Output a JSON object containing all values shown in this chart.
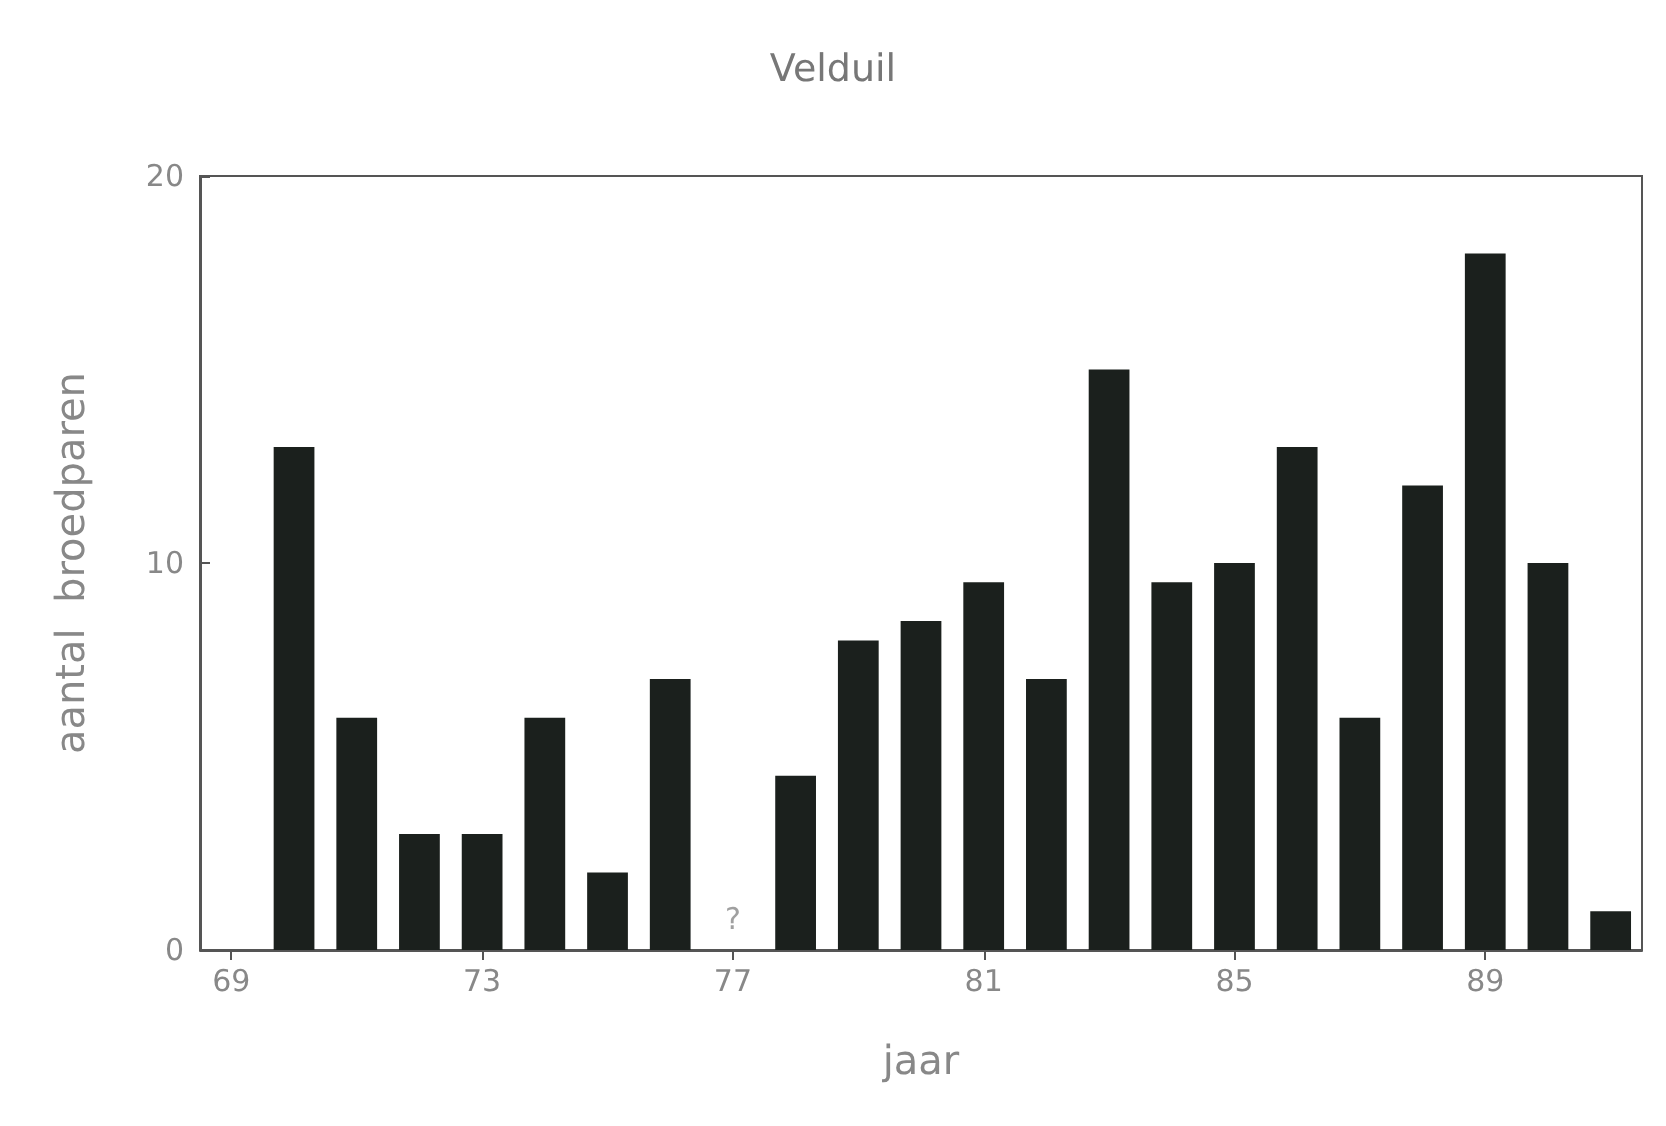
{
  "chart_data": {
    "type": "bar",
    "title": "Velduil",
    "xlabel": "jaar",
    "ylabel": "aantal  broedparen",
    "categories": [
      "69",
      null,
      null,
      null,
      "73",
      null,
      null,
      null,
      "77",
      null,
      null,
      null,
      "81",
      null,
      null,
      null,
      "85",
      null,
      null,
      null,
      "89",
      null,
      null
    ],
    "values": [
      null,
      13,
      6,
      3,
      3,
      6,
      2,
      7,
      null,
      4.5,
      8,
      8.5,
      9.5,
      7,
      15,
      9.5,
      10,
      13,
      6,
      12,
      18,
      10,
      1
    ],
    "color": "#1b201d",
    "ylim": [
      0,
      20
    ],
    "yticks": [
      0,
      10,
      20
    ],
    "annotations": [
      "?"
    ],
    "grid": false
  }
}
